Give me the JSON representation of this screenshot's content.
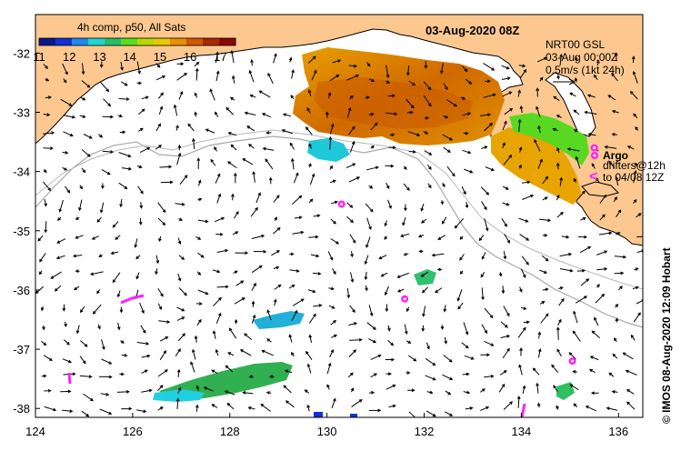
{
  "map": {
    "title": "03-Aug-2020 08Z",
    "colorbar": {
      "title": "4h comp, p50, All Sats",
      "ticks": [
        "11",
        "12",
        "13",
        "14",
        "15",
        "16",
        "17"
      ],
      "range": [
        11,
        17.5
      ],
      "colors": [
        "#081a8c",
        "#1030d8",
        "#1a8af0",
        "#1fd6d0",
        "#20c070",
        "#58e020",
        "#b8d800",
        "#e8c800",
        "#e89000",
        "#d05800",
        "#a82800",
        "#8a0808"
      ]
    },
    "model_label": {
      "line1": "NRT00 GSL",
      "line2": "03-Aug 00:00Z",
      "line3": "0.5m/s (1kt 24h)"
    },
    "argo_legend": {
      "label": "Argo",
      "drifters_label": "drifters@12h",
      "drifters_to": "to 04/08 12Z"
    },
    "credit": "© IMOS 08-Aug-2020 12:09 Hobart",
    "lon_ticks": [
      124,
      126,
      128,
      130,
      132,
      134,
      136
    ],
    "lat_ticks": [
      -32,
      -33,
      -34,
      -35,
      -36,
      -37,
      -38
    ],
    "lon_range": [
      124,
      136.5
    ],
    "lat_range": [
      -38.15,
      -31.35
    ],
    "argo_floats": [
      [
        130.3,
        -34.55
      ],
      [
        131.6,
        -36.15
      ],
      [
        135.05,
        -37.2
      ],
      [
        135.5,
        -33.6
      ]
    ],
    "colors": {
      "land": "#fcc890",
      "ocean": "#ffffff",
      "argo": "#ff20ff",
      "shelf": "#a8a8a8"
    }
  }
}
